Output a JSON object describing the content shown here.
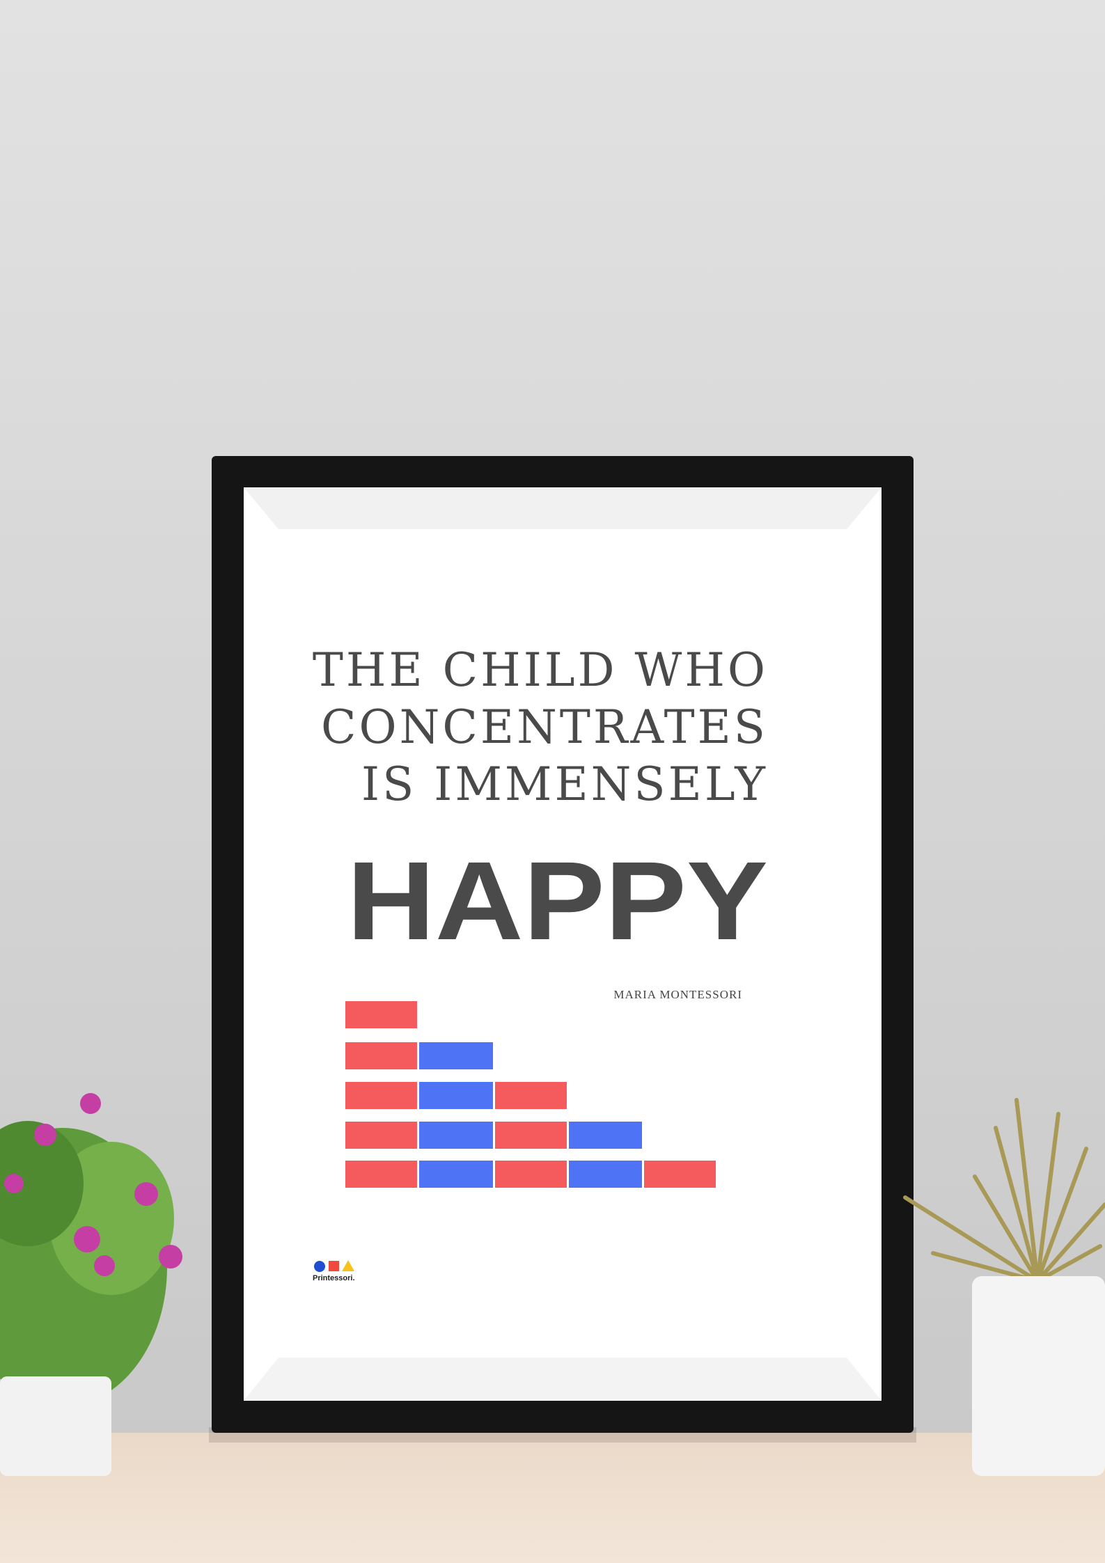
{
  "poster": {
    "quote_lines": [
      "THE CHILD WHO",
      "CONCENTRATES",
      "IS IMMENSELY"
    ],
    "emphasis": "HAPPY",
    "author": "MARIA MONTESSORI",
    "brand": "Printessori."
  }
}
